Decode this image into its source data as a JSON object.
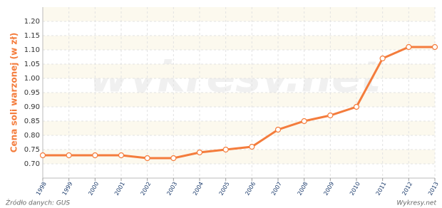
{
  "chart_data": {
    "type": "line",
    "y_label": "Cena soli warzonej (w zł)",
    "source": "Źródło danych: GUS",
    "credit": "Wykresy.net",
    "watermark": "wykresy.net",
    "categories": [
      "1998",
      "1999",
      "2000",
      "2001",
      "2002",
      "2003",
      "2004",
      "2005",
      "2006",
      "2007",
      "2008",
      "2009",
      "2010",
      "2011",
      "2012",
      "2013"
    ],
    "series": [
      {
        "name": "Cena soli warzonej",
        "color": "#f47c3c",
        "values": [
          0.73,
          0.73,
          0.73,
          0.73,
          0.72,
          0.72,
          0.74,
          0.75,
          0.76,
          0.82,
          0.85,
          0.87,
          0.9,
          1.07,
          1.11,
          1.11
        ]
      }
    ],
    "ylim": [
      0.65,
      1.25
    ],
    "yticks": [
      {
        "value": 0.7,
        "label": "0.70"
      },
      {
        "value": 0.75,
        "label": "0.75"
      },
      {
        "value": 0.8,
        "label": "0.80"
      },
      {
        "value": 0.85,
        "label": "0.85"
      },
      {
        "value": 0.9,
        "label": "0.90"
      },
      {
        "value": 0.95,
        "label": "0.95"
      },
      {
        "value": 1.0,
        "label": "1.00"
      },
      {
        "value": 1.05,
        "label": "1.05"
      },
      {
        "value": 1.1,
        "label": "1.10"
      },
      {
        "value": 1.15,
        "label": "1.15"
      },
      {
        "value": 1.2,
        "label": "1.20"
      }
    ],
    "grid": true
  }
}
